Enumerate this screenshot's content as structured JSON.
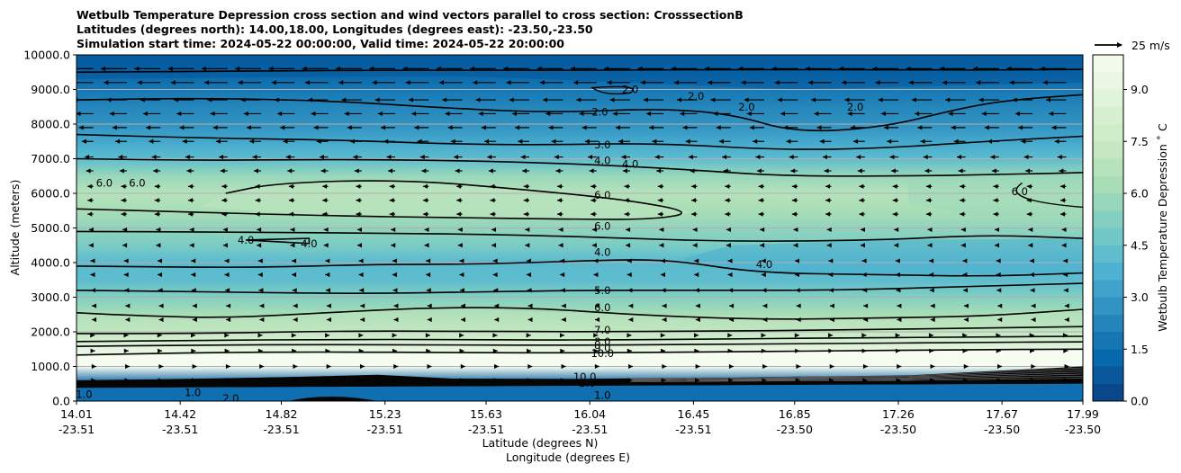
{
  "chart_data": {
    "type": "contour",
    "title_lines": [
      "Wetbulb Temperature Depression cross section and wind vectors parallel to cross section: CrosssectionB",
      "Latitudes (degrees north): 14.00,18.00, Longitudes (degrees east): -23.50,-23.50",
      "Simulation start time: 2024-05-22 00:00:00, Valid time: 2024-05-22 20:00:00"
    ],
    "ylabel": "Altitude (meters)",
    "xlabel_lat": "Latitude (degrees N)",
    "xlabel_lon": "Longitude (degrees E)",
    "ylim": [
      0,
      10000
    ],
    "xlim": [
      14.01,
      17.99
    ],
    "y_ticks": [
      0,
      1000,
      2000,
      3000,
      4000,
      5000,
      6000,
      7000,
      8000,
      9000,
      10000
    ],
    "y_tick_labels": [
      "0.0",
      "1000.0",
      "2000.0",
      "3000.0",
      "4000.0",
      "5000.0",
      "6000.0",
      "7000.0",
      "8000.0",
      "9000.0",
      "10000.0"
    ],
    "x_ticks": [
      {
        "lat": "14.01",
        "lon": "-23.51"
      },
      {
        "lat": "14.42",
        "lon": "-23.51"
      },
      {
        "lat": "14.82",
        "lon": "-23.51"
      },
      {
        "lat": "15.23",
        "lon": "-23.51"
      },
      {
        "lat": "15.63",
        "lon": "-23.51"
      },
      {
        "lat": "16.04",
        "lon": "-23.51"
      },
      {
        "lat": "16.45",
        "lon": "-23.51"
      },
      {
        "lat": "16.85",
        "lon": "-23.50"
      },
      {
        "lat": "17.26",
        "lon": "-23.50"
      },
      {
        "lat": "17.67",
        "lon": "-23.50"
      },
      {
        "lat": "17.99",
        "lon": "-23.50"
      }
    ],
    "colorbar": {
      "label": "Wetbulb Temperature Depression $^\\circ$C",
      "label_display": "Wetbulb Temperature Depression ˚ C",
      "range": [
        0,
        10
      ],
      "ticks": [
        "0.0",
        "1.5",
        "3.0",
        "4.5",
        "6.0",
        "7.5",
        "9.0"
      ],
      "colormap": "GnBu_r"
    },
    "wind_key": {
      "label": "25 m/s",
      "speed": 25
    },
    "field_profile": [
      {
        "alt": 0,
        "value": 1.5
      },
      {
        "alt": 500,
        "value": 1.0
      },
      {
        "alt": 1000,
        "value": 10.0
      },
      {
        "alt": 1500,
        "value": 9.0
      },
      {
        "alt": 2000,
        "value": 7.2
      },
      {
        "alt": 2500,
        "value": 6.3
      },
      {
        "alt": 3000,
        "value": 5.2
      },
      {
        "alt": 3500,
        "value": 4.2
      },
      {
        "alt": 4000,
        "value": 4.1
      },
      {
        "alt": 4500,
        "value": 5.0
      },
      {
        "alt": 5000,
        "value": 5.6
      },
      {
        "alt": 5500,
        "value": 6.3
      },
      {
        "alt": 6000,
        "value": 6.7
      },
      {
        "alt": 6500,
        "value": 5.8
      },
      {
        "alt": 7000,
        "value": 4.2
      },
      {
        "alt": 7500,
        "value": 3.4
      },
      {
        "alt": 8000,
        "value": 2.7
      },
      {
        "alt": 8500,
        "value": 2.3
      },
      {
        "alt": 9000,
        "value": 1.8
      },
      {
        "alt": 9500,
        "value": 1.2
      },
      {
        "alt": 10000,
        "value": 0.9
      }
    ],
    "contour_lines": [
      {
        "level": 2.0,
        "points": [
          [
            14.01,
            9500
          ],
          [
            14.4,
            9520
          ],
          [
            14.9,
            9540
          ],
          [
            15.3,
            9560
          ],
          [
            15.8,
            9550
          ],
          [
            16.2,
            9560
          ],
          [
            16.7,
            9580
          ],
          [
            17.2,
            9570
          ],
          [
            17.6,
            9560
          ],
          [
            17.99,
            9580
          ]
        ]
      },
      {
        "level": 2.0,
        "points": [
          [
            14.01,
            8700
          ],
          [
            14.5,
            8750
          ],
          [
            15.0,
            8680
          ],
          [
            15.5,
            8450
          ],
          [
            15.9,
            8330
          ],
          [
            16.3,
            8450
          ],
          [
            16.6,
            8300
          ],
          [
            16.85,
            7750
          ],
          [
            17.2,
            7900
          ],
          [
            17.5,
            8450
          ],
          [
            17.7,
            8700
          ],
          [
            17.99,
            8850
          ]
        ]
      },
      {
        "level": 3.0,
        "points": [
          [
            14.01,
            7700
          ],
          [
            14.5,
            7600
          ],
          [
            15.0,
            7550
          ],
          [
            15.5,
            7420
          ],
          [
            15.9,
            7400
          ],
          [
            16.3,
            7450
          ],
          [
            16.8,
            7250
          ],
          [
            17.2,
            7300
          ],
          [
            17.6,
            7500
          ],
          [
            17.99,
            7650
          ]
        ]
      },
      {
        "level": 4.0,
        "points": [
          [
            14.01,
            7000
          ],
          [
            14.5,
            6950
          ],
          [
            15.0,
            6980
          ],
          [
            15.5,
            6950
          ],
          [
            16.0,
            6850
          ],
          [
            16.4,
            6700
          ],
          [
            16.8,
            6500
          ],
          [
            17.3,
            6500
          ],
          [
            17.7,
            6550
          ],
          [
            17.99,
            6600
          ]
        ]
      },
      {
        "level": 6.0,
        "points": [
          [
            14.6,
            6000
          ],
          [
            14.8,
            6300
          ],
          [
            15.3,
            6400
          ],
          [
            15.8,
            6100
          ],
          [
            16.2,
            5800
          ],
          [
            16.45,
            5450
          ],
          [
            16.3,
            5250
          ],
          [
            16.0,
            5250
          ],
          [
            15.5,
            5300
          ],
          [
            15.0,
            5350
          ],
          [
            14.01,
            5550
          ]
        ]
      },
      {
        "level": 4.0,
        "points": [
          [
            14.01,
            4900
          ],
          [
            14.6,
            4880
          ],
          [
            15.2,
            4850
          ],
          [
            15.6,
            4820
          ],
          [
            16.0,
            4750
          ],
          [
            16.6,
            4600
          ],
          [
            17.2,
            4650
          ],
          [
            17.6,
            4800
          ],
          [
            17.99,
            4700
          ]
        ]
      },
      {
        "level": 4.0,
        "points": [
          [
            14.01,
            3900
          ],
          [
            14.7,
            3850
          ],
          [
            15.2,
            3950
          ],
          [
            15.6,
            3950
          ],
          [
            16.0,
            4050
          ],
          [
            16.35,
            4100
          ],
          [
            16.7,
            3700
          ],
          [
            17.2,
            3650
          ],
          [
            17.6,
            3600
          ],
          [
            17.99,
            3700
          ]
        ]
      },
      {
        "level": 5.0,
        "points": [
          [
            14.01,
            3200
          ],
          [
            14.6,
            3150
          ],
          [
            15.1,
            3100
          ],
          [
            15.6,
            3150
          ],
          [
            16.0,
            3200
          ],
          [
            16.5,
            3200
          ],
          [
            17.0,
            3200
          ],
          [
            17.5,
            3300
          ],
          [
            17.99,
            3400
          ]
        ]
      },
      {
        "level": 6.0,
        "points": [
          [
            14.01,
            2550
          ],
          [
            14.3,
            2450
          ],
          [
            14.6,
            2400
          ],
          [
            15.0,
            2550
          ],
          [
            15.4,
            2700
          ],
          [
            15.8,
            2700
          ],
          [
            16.2,
            2500
          ],
          [
            16.7,
            2350
          ],
          [
            17.2,
            2400
          ],
          [
            17.6,
            2450
          ],
          [
            17.99,
            2650
          ]
        ]
      },
      {
        "level": 7.0,
        "points": [
          [
            14.01,
            1950
          ],
          [
            14.5,
            1950
          ],
          [
            15.0,
            2020
          ],
          [
            15.5,
            2020
          ],
          [
            16.0,
            2000
          ],
          [
            16.5,
            2020
          ],
          [
            17.0,
            2050
          ],
          [
            17.5,
            2100
          ],
          [
            17.99,
            2150
          ]
        ]
      },
      {
        "level": 8.0,
        "points": [
          [
            14.01,
            1720
          ],
          [
            14.5,
            1750
          ],
          [
            15.0,
            1780
          ],
          [
            15.5,
            1780
          ],
          [
            16.0,
            1760
          ],
          [
            16.5,
            1790
          ],
          [
            17.0,
            1820
          ],
          [
            17.5,
            1850
          ],
          [
            17.99,
            1870
          ]
        ]
      },
      {
        "level": 9.0,
        "points": [
          [
            14.01,
            1580
          ],
          [
            14.5,
            1620
          ],
          [
            15.0,
            1630
          ],
          [
            15.5,
            1620
          ],
          [
            16.0,
            1610
          ],
          [
            16.5,
            1640
          ],
          [
            17.0,
            1660
          ],
          [
            17.5,
            1690
          ],
          [
            17.99,
            1710
          ]
        ]
      },
      {
        "level": 10.0,
        "points": [
          [
            14.01,
            1330
          ],
          [
            14.5,
            1400
          ],
          [
            15.0,
            1420
          ],
          [
            15.5,
            1400
          ],
          [
            16.0,
            1390
          ],
          [
            16.5,
            1420
          ],
          [
            17.0,
            1450
          ],
          [
            17.5,
            1480
          ],
          [
            17.99,
            1500
          ]
        ]
      }
    ],
    "contour_labels": [
      {
        "text": "2.0",
        "lat": 16.08,
        "alt": 8350
      },
      {
        "text": "2.0",
        "lat": 16.2,
        "alt": 9000
      },
      {
        "text": "2.0",
        "lat": 16.46,
        "alt": 8800
      },
      {
        "text": "2.0",
        "lat": 16.66,
        "alt": 8500
      },
      {
        "text": "2.0",
        "lat": 17.09,
        "alt": 8500
      },
      {
        "text": "3.0",
        "lat": 16.09,
        "alt": 7400
      },
      {
        "text": "4.0",
        "lat": 16.09,
        "alt": 6950
      },
      {
        "text": "4.0",
        "lat": 16.2,
        "alt": 6850
      },
      {
        "text": "6.0",
        "lat": 14.12,
        "alt": 6300
      },
      {
        "text": "6.0",
        "lat": 14.25,
        "alt": 6300
      },
      {
        "text": "6.0",
        "lat": 16.09,
        "alt": 5950
      },
      {
        "text": "6.0",
        "lat": 16.09,
        "alt": 5050
      },
      {
        "text": "6.0",
        "lat": 17.74,
        "alt": 6050
      },
      {
        "text": "4.0",
        "lat": 14.68,
        "alt": 4650
      },
      {
        "text": "4.0",
        "lat": 14.93,
        "alt": 4550
      },
      {
        "text": "4.0",
        "lat": 16.09,
        "alt": 4300
      },
      {
        "text": "4.0",
        "lat": 16.73,
        "alt": 3950
      },
      {
        "text": "5.0",
        "lat": 16.09,
        "alt": 3200
      },
      {
        "text": "6.0",
        "lat": 16.09,
        "alt": 2700
      },
      {
        "text": "7.0",
        "lat": 16.09,
        "alt": 2050
      },
      {
        "text": "8.0",
        "lat": 16.09,
        "alt": 1720
      },
      {
        "text": "9.0",
        "lat": 16.09,
        "alt": 1530
      },
      {
        "text": "10.0",
        "lat": 16.09,
        "alt": 1380
      },
      {
        "text": "10.0",
        "lat": 16.02,
        "alt": 700
      },
      {
        "text": "2.0",
        "lat": 16.03,
        "alt": 520
      },
      {
        "text": "1.0",
        "lat": 16.09,
        "alt": 170
      },
      {
        "text": "1.0",
        "lat": 14.04,
        "alt": 200
      },
      {
        "text": "1.0",
        "lat": 14.47,
        "alt": 250
      },
      {
        "text": "2.0",
        "lat": 14.62,
        "alt": 80
      }
    ],
    "wind_vectors": {
      "rows": [
        {
          "alt": 9600,
          "u": -9
        },
        {
          "alt": 9200,
          "u": -8
        },
        {
          "alt": 8700,
          "u": -7
        },
        {
          "alt": 8300,
          "u": -6
        },
        {
          "alt": 7900,
          "u": -5
        },
        {
          "alt": 7500,
          "u": -4
        },
        {
          "alt": 7050,
          "u": -3
        },
        {
          "alt": 6650,
          "u": -2.5
        },
        {
          "alt": 6200,
          "u": -2
        },
        {
          "alt": 5800,
          "u": -2
        },
        {
          "alt": 5400,
          "u": -2
        },
        {
          "alt": 4950,
          "u": -1.5
        },
        {
          "alt": 4500,
          "u": -1.5
        },
        {
          "alt": 4050,
          "u": -1
        },
        {
          "alt": 3650,
          "u": -1
        },
        {
          "alt": 3200,
          "u": -0.8
        },
        {
          "alt": 2750,
          "u": -0.5
        },
        {
          "alt": 2350,
          "u": -0.5
        },
        {
          "alt": 1900,
          "u": 0.5
        },
        {
          "alt": 1450,
          "u": 0.6
        },
        {
          "alt": 1000,
          "u": 1.0
        },
        {
          "alt": 600,
          "u": 0.8
        }
      ],
      "columns": 30
    }
  },
  "colors": {
    "grid": "#b0b0b0",
    "contour": "#000000"
  }
}
